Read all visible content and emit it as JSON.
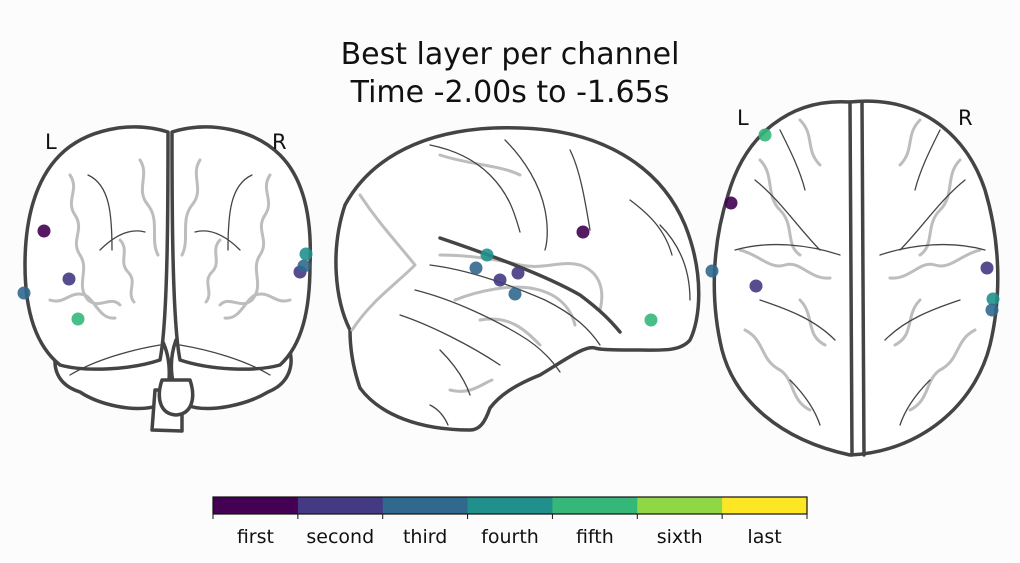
{
  "title": {
    "line1": "Best layer per channel",
    "line2": "Time -2.00s to -1.65s"
  },
  "views": {
    "coronal": {
      "left_label": "L",
      "right_label": "R"
    },
    "axial": {
      "left_label": "L",
      "right_label": "R"
    }
  },
  "colorbar": {
    "categories": [
      "first",
      "second",
      "third",
      "fourth",
      "fifth",
      "sixth",
      "last"
    ],
    "colors": [
      "#440154",
      "#443a83",
      "#31688e",
      "#21908d",
      "#35b779",
      "#8fd744",
      "#fde725"
    ]
  },
  "channels": [
    {
      "layer": "first"
    },
    {
      "layer": "second"
    },
    {
      "layer": "second"
    },
    {
      "layer": "third"
    },
    {
      "layer": "third"
    },
    {
      "layer": "fourth"
    },
    {
      "layer": "fourth"
    },
    {
      "layer": "fifth"
    },
    {
      "layer": "fifth"
    }
  ]
}
